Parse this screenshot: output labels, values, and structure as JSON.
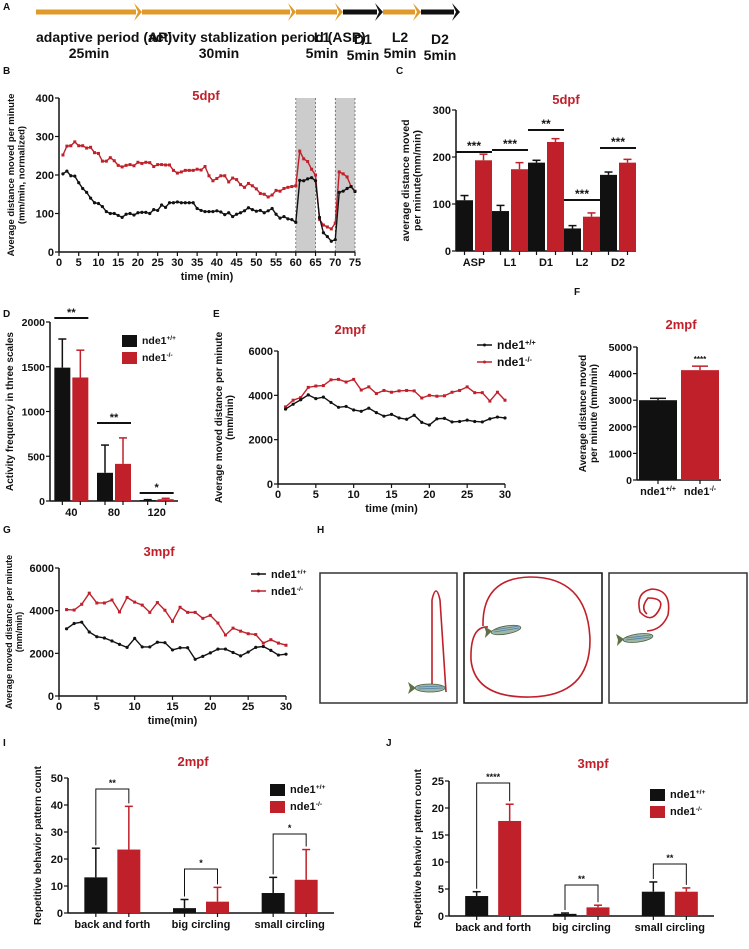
{
  "colors": {
    "wt": "#111111",
    "ko": "#c0202a",
    "title": "#c0202a",
    "orange": "#e09a2a",
    "shade": "#cccccc"
  },
  "panel_letters": [
    "A",
    "B",
    "C",
    "D",
    "E",
    "F",
    "G",
    "H",
    "I",
    "J"
  ],
  "timeline": {
    "segments": [
      {
        "name": "adaptive period (AP)",
        "duration": "25min",
        "color": "orange"
      },
      {
        "name": "activity stablization period (ASP)",
        "duration": "30min",
        "color": "orange"
      },
      {
        "name": "L1",
        "duration": "5min",
        "color": "orange"
      },
      {
        "name": "D1",
        "duration": "5min",
        "color": "black"
      },
      {
        "name": "L2",
        "duration": "5min",
        "color": "orange"
      },
      {
        "name": "D2",
        "duration": "5min",
        "color": "black"
      }
    ]
  },
  "legend": {
    "wt": "nde1",
    "wt_sup": "+/+",
    "ko": "nde1",
    "ko_sup": "-/-"
  },
  "chart_data": [
    {
      "id": "B",
      "type": "line",
      "title": "5dpf",
      "xlabel": "time (min)",
      "ylabel": [
        "Average distance moved per minute",
        "(mm/min, normalized)"
      ],
      "xlim": [
        0,
        75
      ],
      "ylim": [
        0,
        400
      ],
      "xticks": [
        0,
        5,
        10,
        15,
        20,
        25,
        30,
        35,
        40,
        45,
        50,
        55,
        60,
        65,
        70,
        75
      ],
      "yticks": [
        0,
        100,
        200,
        300,
        400
      ],
      "shaded": [
        [
          60,
          65
        ],
        [
          70,
          75
        ]
      ],
      "x": [
        1,
        2,
        3,
        4,
        5,
        6,
        7,
        8,
        9,
        10,
        11,
        12,
        13,
        14,
        15,
        16,
        17,
        18,
        19,
        20,
        21,
        22,
        23,
        24,
        25,
        26,
        27,
        28,
        29,
        30,
        31,
        32,
        33,
        34,
        35,
        36,
        37,
        38,
        39,
        40,
        41,
        42,
        43,
        44,
        45,
        46,
        47,
        48,
        49,
        50,
        51,
        52,
        53,
        54,
        55,
        56,
        57,
        58,
        59,
        60,
        61,
        62,
        63,
        64,
        65,
        66,
        67,
        68,
        69,
        70,
        71,
        72,
        73,
        74,
        75
      ],
      "series": [
        {
          "name": "nde1+/+",
          "color": "wt",
          "values": [
            203,
            210,
            198,
            197,
            180,
            165,
            155,
            140,
            128,
            126,
            118,
            105,
            100,
            100,
            95,
            90,
            98,
            100,
            96,
            102,
            103,
            103,
            100,
            110,
            108,
            122,
            116,
            128,
            128,
            130,
            128,
            128,
            128,
            128,
            113,
            108,
            105,
            105,
            105,
            107,
            104,
            97,
            102,
            92,
            98,
            102,
            107,
            115,
            110,
            106,
            108,
            102,
            107,
            113,
            98,
            88,
            92,
            86,
            84,
            77,
            186,
            185,
            190,
            193,
            185,
            90,
            50,
            40,
            28,
            32,
            155,
            158,
            165,
            170,
            157
          ]
        },
        {
          "name": "nde1-/-",
          "color": "ko",
          "values": [
            252,
            275,
            276,
            286,
            276,
            276,
            270,
            272,
            258,
            256,
            236,
            236,
            245,
            237,
            225,
            221,
            225,
            227,
            224,
            233,
            230,
            233,
            232,
            222,
            227,
            227,
            226,
            226,
            212,
            205,
            208,
            212,
            212,
            212,
            215,
            213,
            222,
            198,
            185,
            191,
            198,
            198,
            182,
            192,
            188,
            175,
            168,
            178,
            172,
            164,
            152,
            150,
            143,
            148,
            160,
            158,
            165,
            168,
            170,
            172,
            262,
            242,
            235,
            215,
            200,
            85,
            70,
            65,
            60,
            75,
            208,
            203,
            195,
            170,
            158
          ]
        }
      ]
    },
    {
      "id": "C",
      "type": "bar",
      "title": "5dpf",
      "xlabel": "",
      "ylabel": [
        "average distance moved",
        "per minute(mm/min)"
      ],
      "ylim": [
        0,
        300
      ],
      "yticks": [
        0,
        100,
        200,
        300
      ],
      "categories": [
        "ASP",
        "L1",
        "D1",
        "L2",
        "D2"
      ],
      "series": [
        {
          "name": "nde1+/+",
          "color": "wt",
          "values": [
            108,
            85,
            188,
            48,
            162
          ],
          "errors": [
            10,
            12,
            5,
            6,
            6
          ]
        },
        {
          "name": "nde1-/-",
          "color": "ko",
          "values": [
            193,
            174,
            232,
            73,
            188
          ],
          "errors": [
            13,
            14,
            7,
            8,
            7
          ]
        }
      ],
      "significance": [
        "***",
        "***",
        "**",
        "***",
        "***"
      ]
    },
    {
      "id": "D",
      "type": "bar",
      "title": "",
      "xlabel": "",
      "ylabel": [
        "Activity frequency in three scales"
      ],
      "ylim": [
        0,
        2000
      ],
      "yticks": [
        0,
        500,
        1000,
        1500,
        2000
      ],
      "categories": [
        "40",
        "80",
        "120"
      ],
      "series": [
        {
          "name": "nde1+/+",
          "color": "wt",
          "values": [
            1490,
            315,
            10
          ],
          "errors": [
            320,
            310,
            5
          ]
        },
        {
          "name": "nde1-/-",
          "color": "ko",
          "values": [
            1380,
            415,
            20
          ],
          "errors": [
            305,
            290,
            10
          ]
        }
      ],
      "significance": [
        "**",
        "**",
        "*"
      ],
      "legend": "top-right"
    },
    {
      "id": "E",
      "type": "line",
      "title": "2mpf",
      "xlabel": "time (min)",
      "ylabel": [
        "Average moved distance per minute",
        "(mm/min)"
      ],
      "xlim": [
        0,
        30
      ],
      "ylim": [
        0,
        6000
      ],
      "xticks": [
        0,
        5,
        10,
        15,
        20,
        25,
        30
      ],
      "yticks": [
        0,
        2000,
        4000,
        6000
      ],
      "x": [
        1,
        2,
        3,
        4,
        5,
        6,
        7,
        8,
        9,
        10,
        11,
        12,
        13,
        14,
        15,
        16,
        17,
        18,
        19,
        20,
        21,
        22,
        23,
        24,
        25,
        26,
        27,
        28,
        29,
        30
      ],
      "series": [
        {
          "name": "nde1+/+",
          "color": "wt",
          "values": [
            3380,
            3600,
            3800,
            4020,
            3850,
            3920,
            3680,
            3460,
            3500,
            3340,
            3280,
            3420,
            3220,
            3060,
            3140,
            2980,
            2920,
            3100,
            2780,
            2660,
            2940,
            2960,
            2800,
            2820,
            2880,
            2820,
            2800,
            2940,
            3020,
            2980
          ]
        },
        {
          "name": "nde1-/-",
          "color": "ko",
          "values": [
            3480,
            3780,
            3900,
            4360,
            4420,
            4440,
            4700,
            4720,
            4600,
            4720,
            4240,
            4380,
            4080,
            4220,
            4140,
            4200,
            4220,
            4200,
            3880,
            4000,
            3960,
            3980,
            4140,
            4220,
            4380,
            4120,
            4120,
            3740,
            4140,
            3780
          ]
        }
      ],
      "legend": "top-right"
    },
    {
      "id": "F",
      "type": "bar",
      "title": "2mpf",
      "xlabel": "",
      "ylabel": [
        "Average distance moved",
        "per minute (mm/min)"
      ],
      "ylim": [
        0,
        5000
      ],
      "yticks": [
        0,
        1000,
        2000,
        3000,
        4000,
        5000
      ],
      "categories": [
        "nde1+/+",
        "nde1-/-"
      ],
      "values": [
        3000,
        4130
      ],
      "errors": [
        70,
        150
      ],
      "significance": "****"
    },
    {
      "id": "G",
      "type": "line",
      "title": "3mpf",
      "xlabel": "time(min)",
      "ylabel": [
        "Average moved distance per minute",
        "(mm/min)"
      ],
      "xlim": [
        0,
        30
      ],
      "ylim": [
        0,
        6000
      ],
      "xticks": [
        0,
        5,
        10,
        15,
        20,
        25,
        30
      ],
      "yticks": [
        0,
        2000,
        4000,
        6000
      ],
      "x": [
        1,
        2,
        3,
        4,
        5,
        6,
        7,
        8,
        9,
        10,
        11,
        12,
        13,
        14,
        15,
        16,
        17,
        18,
        19,
        20,
        21,
        22,
        23,
        24,
        25,
        26,
        27,
        28,
        29,
        30
      ],
      "series": [
        {
          "name": "nde1+/+",
          "color": "wt",
          "values": [
            3150,
            3400,
            3460,
            3000,
            2780,
            2720,
            2580,
            2420,
            2280,
            2700,
            2300,
            2300,
            2520,
            2500,
            2160,
            2260,
            2260,
            1720,
            1860,
            2020,
            2200,
            2200,
            2040,
            1880,
            2060,
            2280,
            2320,
            2140,
            1920,
            1960
          ]
        },
        {
          "name": "nde1-/-",
          "color": "ko",
          "values": [
            4050,
            4030,
            4300,
            4820,
            4360,
            4360,
            4500,
            3940,
            4620,
            4400,
            4260,
            3920,
            4380,
            4020,
            3500,
            4160,
            3920,
            3920,
            3640,
            3780,
            3420,
            2860,
            3180,
            3040,
            2920,
            2880,
            2480,
            2640,
            2480,
            2380
          ]
        }
      ],
      "legend": "top-right"
    },
    {
      "id": "I",
      "type": "bar",
      "title": "2mpf",
      "xlabel": "",
      "ylabel": [
        "Repetitive behavior pattern count"
      ],
      "ylim": [
        0,
        50
      ],
      "yticks": [
        0,
        10,
        20,
        30,
        40,
        50
      ],
      "categories": [
        "back and forth",
        "big circling",
        "small circling"
      ],
      "series": [
        {
          "name": "nde1+/+",
          "color": "wt",
          "values": [
            13.2,
            1.8,
            7.4
          ],
          "errors": [
            10.8,
            3.2,
            5.8
          ]
        },
        {
          "name": "nde1-/-",
          "color": "ko",
          "values": [
            23.5,
            4.2,
            12.3
          ],
          "errors": [
            16,
            5.3,
            11.2
          ]
        }
      ],
      "significance": [
        "**",
        "*",
        "*"
      ],
      "legend": "top-right"
    },
    {
      "id": "J",
      "type": "bar",
      "title": "3mpf",
      "xlabel": "",
      "ylabel": [
        "Repetitive behavior pattern count"
      ],
      "ylim": [
        0,
        25
      ],
      "yticks": [
        0,
        5,
        10,
        15,
        20,
        25
      ],
      "categories": [
        "back and forth",
        "big circling",
        "small circling"
      ],
      "series": [
        {
          "name": "nde1+/+",
          "color": "wt",
          "values": [
            3.7,
            0.4,
            4.5
          ],
          "errors": [
            0.8,
            0.15,
            1.8
          ]
        },
        {
          "name": "nde1-/-",
          "color": "ko",
          "values": [
            17.6,
            1.6,
            4.5
          ],
          "errors": [
            3.1,
            0.4,
            0.7
          ]
        }
      ],
      "significance": [
        "****",
        "**",
        "**"
      ],
      "legend": "top-right"
    }
  ],
  "panel_H": {
    "type": "illustration",
    "boxes": [
      "back and forth",
      "big circling",
      "small circling"
    ]
  }
}
